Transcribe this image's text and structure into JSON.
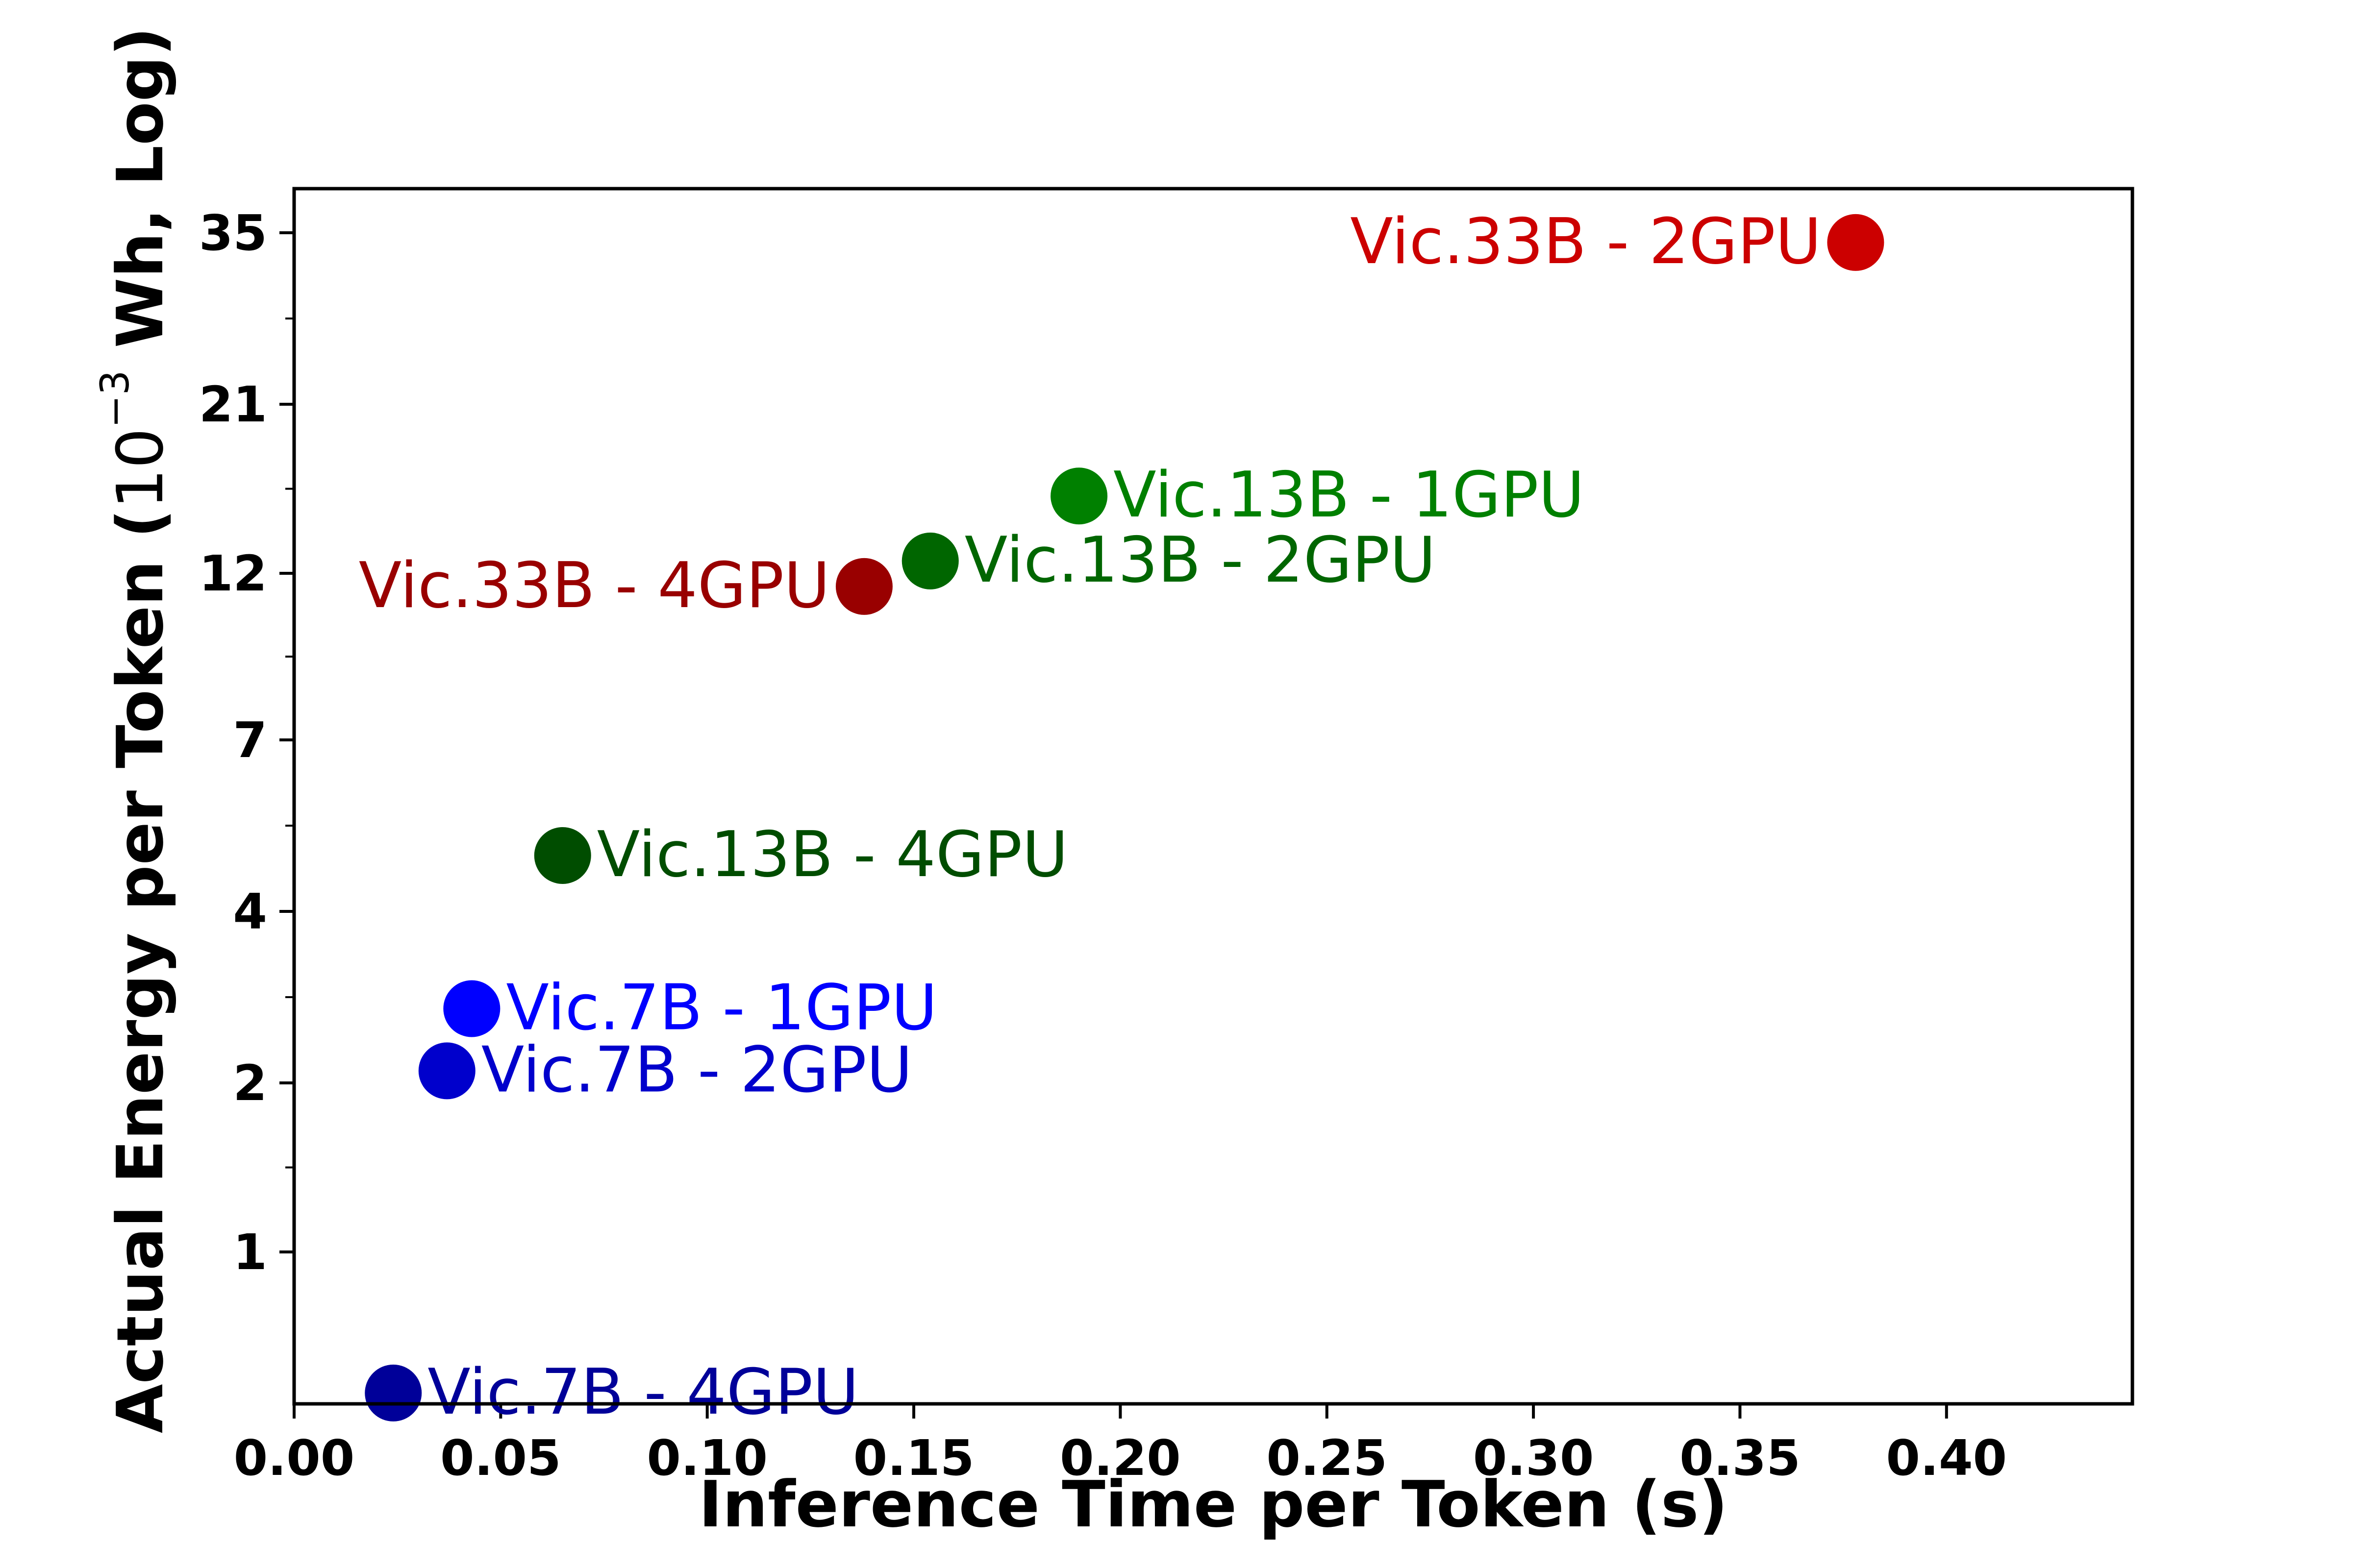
{
  "chart_data": {
    "type": "scatter",
    "title": "",
    "xlabel": "Inference Time per Token (s)",
    "ylabel_main": "Actual Energy per Token (",
    "ylabel_unit_base": "10",
    "ylabel_unit_exp": "−3",
    "ylabel_unit_rest": " Wh, Log)",
    "xlim": [
      0.0,
      0.445
    ],
    "y_scale": "log",
    "x_ticks": [
      {
        "value": 0.0,
        "label": "0.00"
      },
      {
        "value": 0.05,
        "label": "0.05"
      },
      {
        "value": 0.1,
        "label": "0.10"
      },
      {
        "value": 0.15,
        "label": "0.15"
      },
      {
        "value": 0.2,
        "label": "0.20"
      },
      {
        "value": 0.25,
        "label": "0.25"
      },
      {
        "value": 0.3,
        "label": "0.30"
      },
      {
        "value": 0.35,
        "label": "0.35"
      },
      {
        "value": 0.4,
        "label": "0.40"
      }
    ],
    "y_ticks": [
      {
        "value": 1,
        "label": "1"
      },
      {
        "value": 2,
        "label": "2"
      },
      {
        "value": 4,
        "label": "4"
      },
      {
        "value": 7,
        "label": "7"
      },
      {
        "value": 12,
        "label": "12"
      },
      {
        "value": 21,
        "label": "21"
      },
      {
        "value": 35,
        "label": "35"
      }
    ],
    "points": [
      {
        "name": "Vic.7B - 4GPU",
        "x": 0.024,
        "y": 0.57,
        "color": "#000099",
        "label_side": "right"
      },
      {
        "name": "Vic.7B - 2GPU",
        "x": 0.037,
        "y": 2.1,
        "color": "#0000cc",
        "label_side": "right"
      },
      {
        "name": "Vic.7B - 1GPU",
        "x": 0.043,
        "y": 2.7,
        "color": "#0000ff",
        "label_side": "right"
      },
      {
        "name": "Vic.13B - 4GPU",
        "x": 0.065,
        "y": 4.8,
        "color": "#004d00",
        "label_side": "right"
      },
      {
        "name": "Vic.13B - 2GPU",
        "x": 0.154,
        "y": 12.5,
        "color": "#006600",
        "label_side": "right"
      },
      {
        "name": "Vic.13B - 1GPU",
        "x": 0.19,
        "y": 15.5,
        "color": "#008000",
        "label_side": "right"
      },
      {
        "name": "Vic.33B - 4GPU",
        "x": 0.138,
        "y": 11.5,
        "color": "#990000",
        "label_side": "left"
      },
      {
        "name": "Vic.33B - 2GPU",
        "x": 0.378,
        "y": 34,
        "color": "#cc0000",
        "label_side": "left"
      }
    ]
  }
}
